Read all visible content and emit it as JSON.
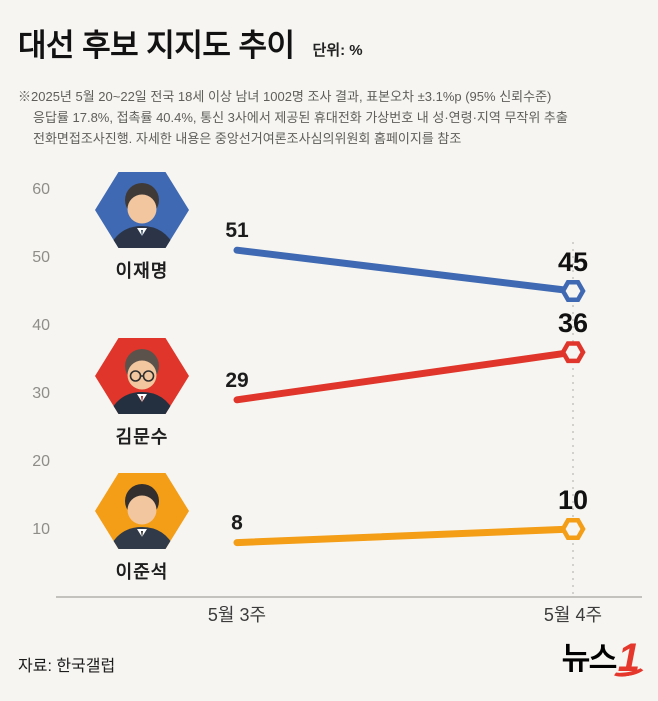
{
  "header": {
    "title": "대선 후보 지지도 추이",
    "unit_label": "단위: %",
    "footnote_lines": [
      "※2025년 5월 20~22일 전국 18세 이상 남녀 1002명 조사 결과, 표본오차 ±3.1%p (95% 신뢰수준)",
      "응답률 17.8%, 접촉률 40.4%, 통신 3사에서 제공된 휴대전화 가상번호 내 성·연령·지역 무작위 추출",
      "전화면접조사진행. 자세한 내용은 중앙선거여론조사심의위원회 홈페이지를 참조"
    ]
  },
  "chart_data": {
    "type": "line",
    "title": "대선 후보 지지도 추이",
    "unit": "%",
    "categories": [
      "5월 3주",
      "5월 4주"
    ],
    "series": [
      {
        "name": "이재명",
        "values": [
          51,
          45
        ],
        "color": "#3f69b2"
      },
      {
        "name": "김문수",
        "values": [
          29,
          36
        ],
        "color": "#e0352a"
      },
      {
        "name": "이준석",
        "values": [
          8,
          10
        ],
        "color": "#f49d16"
      }
    ],
    "ylim": [
      0,
      60
    ],
    "yticks": [
      10,
      20,
      30,
      40,
      50,
      60
    ],
    "grid": false,
    "legend_position": "left-avatars",
    "end_marker": "hexagon"
  },
  "footer": {
    "source": "자료: 한국갤럽",
    "logo": {
      "black_text": "뉴스",
      "red_text": "1",
      "red_color": "#e5372b"
    }
  }
}
